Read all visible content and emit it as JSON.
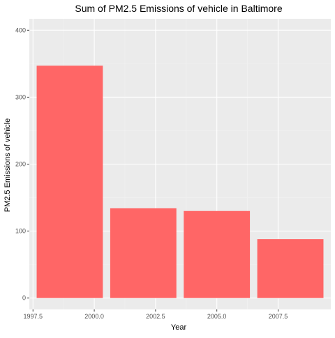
{
  "chart_data": {
    "type": "bar",
    "title": "Sum of PM2.5 Emissions of vehicle in Baltimore",
    "xlabel": "Year",
    "ylabel": "PM2.5 Emissions of vehicle",
    "x": [
      1999,
      2002,
      2005,
      2008
    ],
    "values": [
      347,
      134,
      130,
      88
    ],
    "bar_width_years": 2.7,
    "xlim": [
      1997.35,
      2009.65
    ],
    "ylim": [
      -17,
      417
    ],
    "x_ticks": [
      1997.5,
      2000.0,
      2002.5,
      2005.0,
      2007.5
    ],
    "x_tick_labels": [
      "1997.5",
      "2000.0",
      "2002.5",
      "2005.0",
      "2007.5"
    ],
    "y_ticks": [
      0,
      100,
      200,
      300,
      400
    ],
    "y_tick_labels": [
      "0",
      "100",
      "200",
      "300",
      "400"
    ],
    "grid": true,
    "colors": {
      "bar": "#ff6666",
      "panel_background": "#ebebeb",
      "grid_major": "#ffffff",
      "grid_minor": "#f2f2f2"
    }
  }
}
